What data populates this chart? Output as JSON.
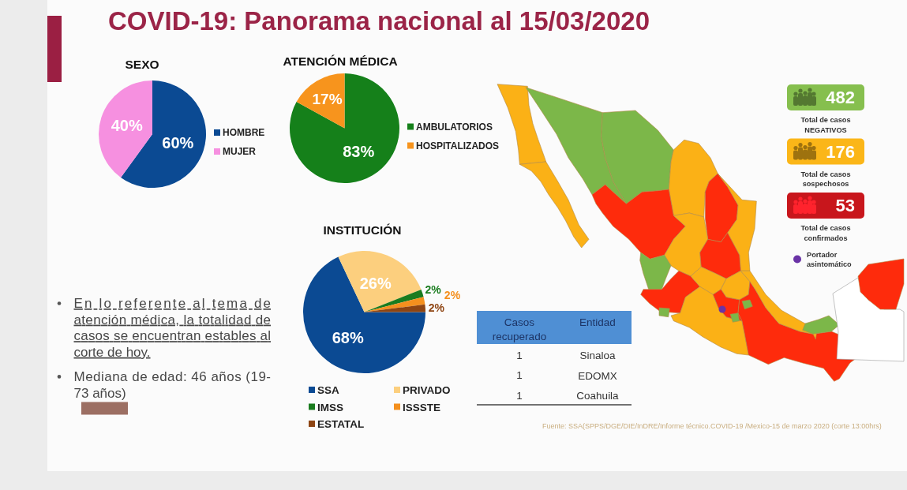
{
  "chart_data": [
    {
      "type": "other",
      "title": "COVID-19: Panorama nacional al 15/03/2020",
      "annotations": [
        "En lo referente al tema de atención médica, la totalidad de casos se encuentran estables al corte de hoy.",
        "Mediana de edad: 46 años (19-73 años)"
      ]
    },
    {
      "type": "pie",
      "title": "SEXO",
      "categories": [
        "HOMBRE",
        "MUJER"
      ],
      "values": [
        60,
        40
      ],
      "colors": [
        "#0b4a93",
        "#f690e0"
      ],
      "value_labels": [
        "60%",
        "40%"
      ],
      "legend": "right"
    },
    {
      "type": "pie",
      "title": "ATENCIÓN MÉDICA",
      "categories": [
        "AMBULATORIOS",
        "HOSPITALIZADOS"
      ],
      "values": [
        83,
        17
      ],
      "colors": [
        "#15801a",
        "#f7941d"
      ],
      "value_labels": [
        "83%",
        "17%"
      ],
      "legend": "right"
    },
    {
      "type": "other",
      "categories": [
        "Total de casos NEGATIVOS",
        "Total de casos sospechosos",
        "Total de casos confirmados",
        "Portador asintomático"
      ],
      "values": [
        482,
        176,
        53,
        null
      ],
      "colors": [
        "#86bf4e",
        "#fbb618",
        "#c8161c",
        "#6a33a6"
      ],
      "data_labels": true
    },
    {
      "type": "pie",
      "title": "INSTITUCIÓN",
      "categories": [
        "SSA",
        "PRIVADO",
        "IMSS",
        "ISSSTE",
        "ESTATAL"
      ],
      "values": [
        68,
        26,
        2,
        2,
        2
      ],
      "colors": [
        "#0b4a93",
        "#fccf7e",
        "#1a7c1f",
        "#f4901e",
        "#8e4513"
      ],
      "value_labels": [
        "68%",
        "26%",
        "2%",
        "2%",
        "2%"
      ],
      "legend": "bottom"
    },
    {
      "type": "other",
      "categories": [
        "Sinaloa",
        "EDOMX",
        "Coahuila"
      ],
      "values": [
        1,
        1,
        1
      ],
      "xlabel": "Entidad",
      "ylabel": "Casos recuperado",
      "data_labels": true,
      "annotations": [
        "Fuente: SSA(SPPS/DGE/DIE/InDRE/Informe técnico.COVID-19 /Mexico-15 de marzo 2020 (corte 13:00hrs)"
      ]
    }
  ]
}
